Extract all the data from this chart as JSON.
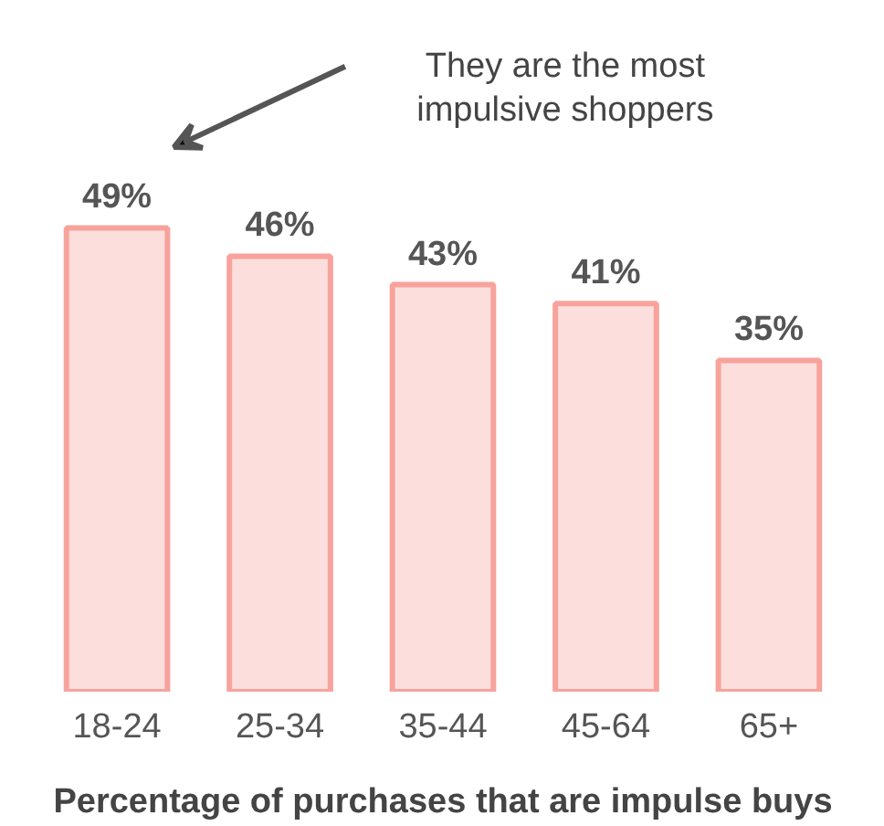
{
  "chart_data": {
    "type": "bar",
    "xlabel": "Percentage of purchases that are impulse buys",
    "categories": [
      "18-24",
      "25-34",
      "35-44",
      "45-64",
      "65+"
    ],
    "values": [
      49,
      46,
      43,
      41,
      35
    ],
    "value_labels": [
      "49%",
      "46%",
      "43%",
      "41%",
      "35%"
    ],
    "color": "#f7a39c",
    "annotations": [
      "They are the most impulsive shoppers"
    ],
    "grid": false,
    "tick_labels": "x"
  }
}
